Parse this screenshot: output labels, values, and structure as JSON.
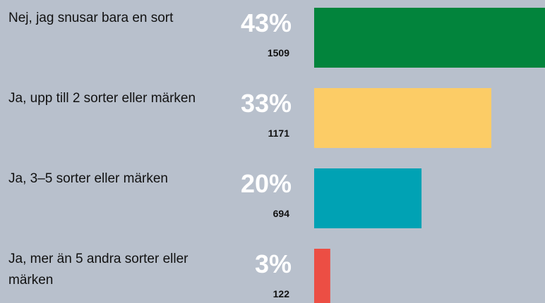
{
  "chart_data": {
    "type": "bar",
    "categories": [
      "Nej, jag snusar bara en sort",
      "Ja, upp till 2 sorter eller märken",
      "Ja, 3–5 sorter eller märken",
      "Ja, mer än 5 andra sorter eller märken"
    ],
    "values": [
      43,
      33,
      20,
      3
    ],
    "value_labels": [
      "43%",
      "33%",
      "20%",
      "3%"
    ],
    "counts": [
      1509,
      1171,
      694,
      122
    ],
    "colors": [
      "#02843c",
      "#fccc66",
      "#00a2b4",
      "#ec4e44"
    ]
  }
}
